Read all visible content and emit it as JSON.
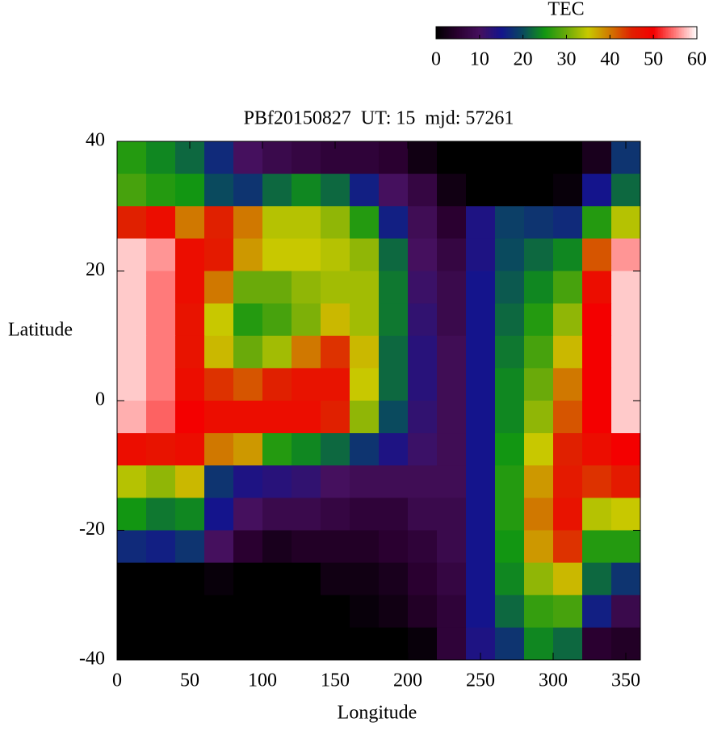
{
  "chart_data": {
    "type": "heatmap",
    "title": "PBf20150827  UT: 15  mjd: 57261",
    "x_label": "Longitude",
    "y_label": "Latitude",
    "colorbar_label": "TEC",
    "xlim": [
      0,
      360
    ],
    "xticks": [
      0,
      50,
      100,
      150,
      200,
      250,
      300,
      350
    ],
    "ylim": [
      -40,
      40
    ],
    "yticks": [
      -40,
      -20,
      0,
      20,
      40
    ],
    "zlim": [
      0,
      60
    ],
    "zticks": [
      0,
      10,
      20,
      30,
      40,
      50,
      60
    ],
    "colorscale": [
      "#000000",
      "#2a0030",
      "#45105e",
      "#14148c",
      "#0a4a5e",
      "#129612",
      "#6aaa0a",
      "#c8c800",
      "#d07800",
      "#e02000",
      "#f40000",
      "#ff7a7a",
      "#ffffff"
    ],
    "xbins": [
      0,
      20,
      40,
      60,
      80,
      100,
      120,
      140,
      160,
      180,
      200,
      220,
      240,
      260,
      280,
      300,
      320,
      340,
      360
    ],
    "ybins": [
      40,
      35,
      30,
      25,
      20,
      15,
      10,
      5,
      0,
      -5,
      -10,
      -15,
      -20,
      -25,
      -30,
      -35,
      -40
    ],
    "z": [
      [
        26,
        24,
        22,
        17,
        10,
        8,
        7,
        6,
        6,
        5,
        2,
        0,
        0,
        0,
        0,
        0,
        3,
        18
      ],
      [
        28,
        26,
        25,
        20,
        18,
        22,
        24,
        22,
        16,
        10,
        7,
        2,
        0,
        0,
        0,
        1,
        15,
        22
      ],
      [
        45,
        48,
        40,
        45,
        40,
        34,
        34,
        32,
        26,
        16,
        9,
        5,
        14,
        19,
        18,
        17,
        26,
        34
      ],
      [
        58,
        56,
        48,
        46,
        38,
        35,
        35,
        34,
        32,
        22,
        10,
        7,
        14,
        20,
        22,
        24,
        42,
        56
      ],
      [
        58,
        55,
        48,
        40,
        30,
        30,
        32,
        33,
        33,
        23,
        11,
        8,
        15,
        21,
        24,
        28,
        48,
        58
      ],
      [
        58,
        55,
        47,
        35,
        26,
        28,
        31,
        36,
        33,
        23,
        12,
        8,
        15,
        22,
        26,
        32,
        50,
        58
      ],
      [
        58,
        55,
        47,
        36,
        30,
        33,
        40,
        44,
        36,
        22,
        13,
        9,
        15,
        23,
        28,
        36,
        50,
        58
      ],
      [
        58,
        55,
        48,
        44,
        42,
        45,
        47,
        47,
        35,
        22,
        13,
        9,
        15,
        24,
        30,
        40,
        50,
        58
      ],
      [
        57,
        54,
        50,
        48,
        48,
        48,
        48,
        45,
        32,
        20,
        12,
        9,
        15,
        24,
        32,
        42,
        50,
        58
      ],
      [
        48,
        47,
        48,
        40,
        38,
        26,
        24,
        22,
        18,
        14,
        11,
        9,
        15,
        25,
        35,
        45,
        48,
        50
      ],
      [
        34,
        32,
        36,
        18,
        14,
        13,
        12,
        10,
        9,
        9,
        9,
        9,
        15,
        26,
        38,
        46,
        44,
        46
      ],
      [
        25,
        23,
        24,
        15,
        10,
        8,
        8,
        7,
        6,
        6,
        8,
        8,
        15,
        26,
        40,
        47,
        34,
        35
      ],
      [
        17,
        16,
        18,
        10,
        5,
        3,
        4,
        4,
        4,
        5,
        6,
        8,
        15,
        25,
        38,
        44,
        26,
        26
      ],
      [
        0,
        0,
        0,
        1,
        0,
        0,
        0,
        2,
        2,
        3,
        5,
        7,
        15,
        24,
        32,
        36,
        22,
        18
      ],
      [
        0,
        0,
        0,
        0,
        0,
        0,
        0,
        0,
        1,
        2,
        4,
        6,
        15,
        22,
        27,
        28,
        16,
        8
      ],
      [
        0,
        0,
        0,
        0,
        0,
        0,
        0,
        0,
        0,
        0,
        1,
        6,
        14,
        18,
        24,
        22,
        5,
        4
      ]
    ]
  }
}
